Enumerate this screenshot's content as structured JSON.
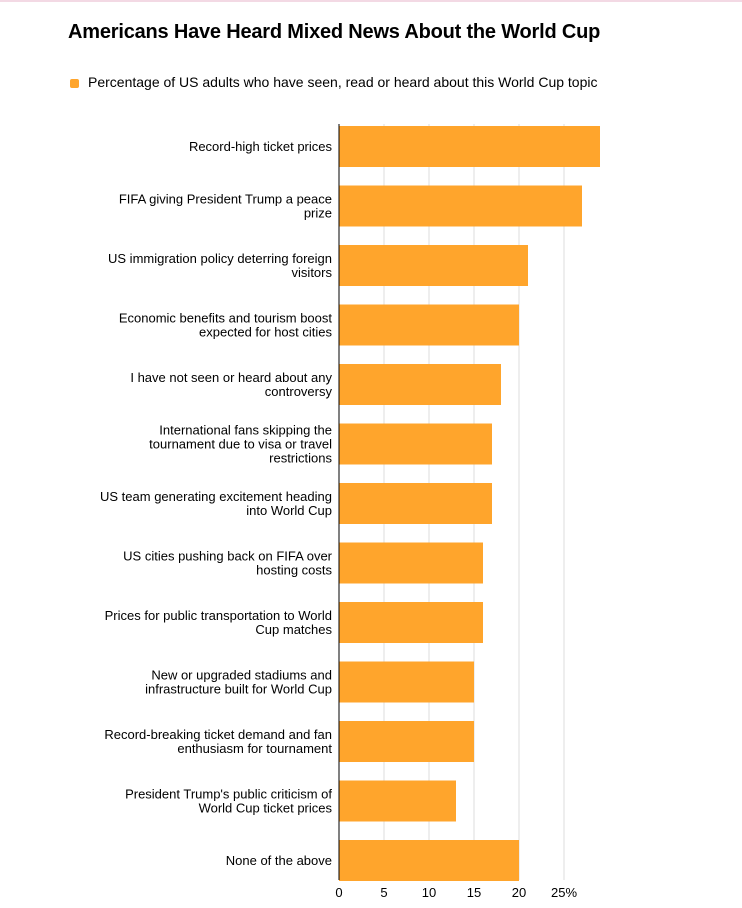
{
  "title": "Americans Have Heard Mixed News About the World Cup",
  "legend": {
    "label": "Percentage of US adults who have seen, read or heard about this World Cup topic",
    "color": "#ffa52c"
  },
  "chart_data": {
    "type": "bar",
    "orientation": "horizontal",
    "title": "Americans Have Heard Mixed News About the World Cup",
    "xlabel": "",
    "ylabel": "",
    "xlim": [
      0,
      29
    ],
    "ticks": [
      0,
      5,
      10,
      15,
      20,
      25
    ],
    "tick_labels": [
      "0",
      "5",
      "10",
      "15",
      "20",
      "25%"
    ],
    "grid": true,
    "legend_position": "top-left",
    "bar_color": "#ffa52c",
    "series": [
      {
        "name": "Percentage of US adults who have seen, read or heard about this World Cup topic",
        "values": [
          29,
          27,
          21,
          20,
          18,
          17,
          17,
          16,
          16,
          15,
          15,
          13,
          20
        ]
      }
    ],
    "categories": [
      "Record-high ticket prices",
      "FIFA giving President Trump a peace prize",
      "US immigration policy deterring foreign visitors",
      "Economic benefits and tourism boost expected for host cities",
      "I have not seen or heard about any controversy",
      "International fans skipping the tournament due to visa or travel restrictions",
      "US team generating excitement heading into World Cup",
      "US cities pushing back on FIFA over hosting costs",
      "Prices for public transportation to World Cup matches",
      "New or upgraded stadiums and infrastructure built for World Cup",
      "Record-breaking ticket demand and fan enthusiasm for tournament",
      "President Trump's public criticism of World Cup ticket prices",
      "None of the above"
    ],
    "category_lines": [
      [
        "Record-high ticket prices"
      ],
      [
        "FIFA giving President Trump a peace",
        "prize"
      ],
      [
        "US immigration policy deterring foreign",
        "visitors"
      ],
      [
        "Economic benefits and tourism boost",
        "expected for host cities"
      ],
      [
        "I have not seen or heard about any",
        "controversy"
      ],
      [
        "International fans skipping the",
        "tournament due to visa or travel",
        "restrictions"
      ],
      [
        "US team generating excitement heading",
        "into World Cup"
      ],
      [
        "US cities pushing back on FIFA over",
        "hosting costs"
      ],
      [
        "Prices for public transportation to World",
        "Cup matches"
      ],
      [
        "New or upgraded stadiums and",
        "infrastructure built for World Cup"
      ],
      [
        "Record-breaking ticket demand and fan",
        "enthusiasm for tournament"
      ],
      [
        "President Trump's public criticism of",
        "World Cup ticket prices"
      ],
      [
        "None of the above"
      ]
    ]
  }
}
